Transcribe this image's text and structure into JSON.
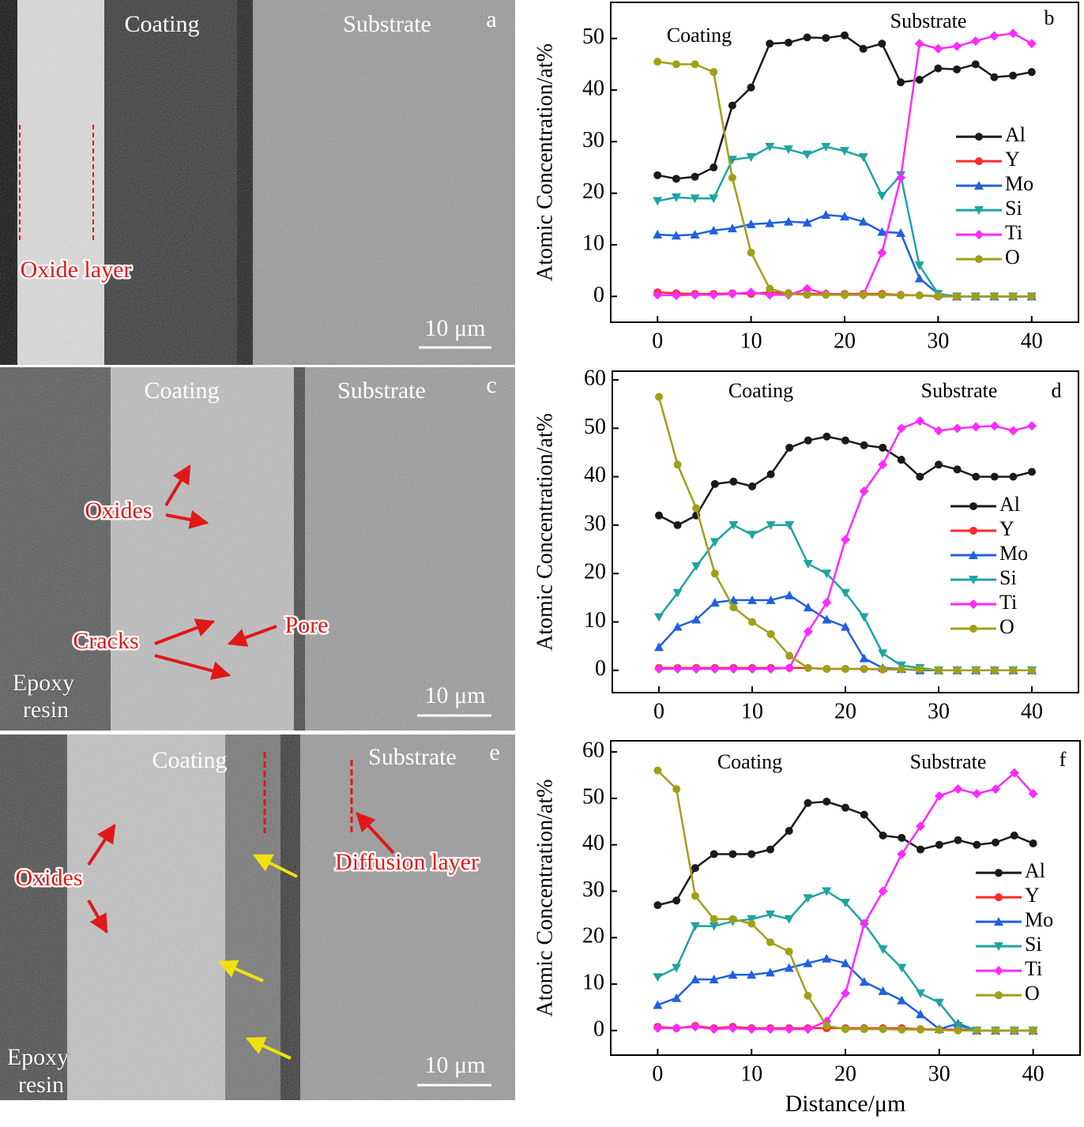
{
  "panels": [
    {
      "texts": [
        "Coating",
        "Substrate",
        "a",
        "Oxide layer",
        "10 μm"
      ]
    },
    {
      "texts": [
        "Coating",
        "Substrate",
        "c",
        "Oxides",
        "Cracks",
        "Pore",
        "Epoxy",
        "resin",
        "10 μm"
      ]
    },
    {
      "texts": [
        "Coating",
        "Substrate",
        "e",
        "Oxides",
        "Diffusion layer",
        "Epoxy",
        "resin",
        "10 μm"
      ]
    }
  ],
  "chart_data": [
    {
      "type": "line",
      "annotations": [
        "Coating",
        "Substrate",
        "b"
      ],
      "ylabel": "Atomic Concentration/at%",
      "x": [
        0,
        2,
        4,
        6,
        8,
        10,
        12,
        14,
        16,
        18,
        20,
        22,
        24,
        26,
        28,
        30,
        32,
        34,
        36,
        38,
        40
      ],
      "xlim": [
        -5,
        45
      ],
      "ylim": [
        -5,
        57
      ],
      "xticks": [
        0,
        10,
        20,
        30,
        40
      ],
      "yticks": [
        0,
        10,
        20,
        30,
        40,
        50
      ],
      "legend": "right",
      "series": [
        {
          "name": "Al",
          "color": "#1a1a1a",
          "marker": "circle",
          "values": [
            23.5,
            22.8,
            23.2,
            25,
            37,
            40.5,
            49,
            49.2,
            50.2,
            50.1,
            50.6,
            48,
            49,
            41.5,
            42,
            44.2,
            44,
            45,
            42.5,
            42.8,
            43.5
          ]
        },
        {
          "name": "Y",
          "color": "#ff2a2a",
          "marker": "circle",
          "values": [
            0.8,
            0.6,
            0.5,
            0.5,
            0.6,
            0.5,
            0.8,
            0.6,
            0.5,
            0.5,
            0.5,
            0.5,
            0.5,
            0.3,
            0.2,
            0,
            0,
            0,
            0,
            0,
            0
          ]
        },
        {
          "name": "Mo",
          "color": "#2060e0",
          "marker": "triangle",
          "values": [
            12,
            11.8,
            12,
            12.8,
            13.2,
            14,
            14.2,
            14.5,
            14.3,
            15.8,
            15.5,
            14.5,
            12.5,
            12.3,
            3.5,
            0.5,
            0,
            0,
            0,
            0,
            0
          ]
        },
        {
          "name": "Si",
          "color": "#1fa3a3",
          "marker": "triangle-down",
          "values": [
            18.5,
            19.2,
            19,
            19,
            26.5,
            27,
            29,
            28.5,
            27.5,
            29,
            28.2,
            27,
            19.5,
            23.5,
            6,
            0.5,
            0,
            0,
            0,
            0,
            0
          ]
        },
        {
          "name": "Ti",
          "color": "#ff2aff",
          "marker": "diamond",
          "values": [
            0.3,
            0.2,
            0.3,
            0.3,
            0.5,
            0.8,
            0.3,
            0.3,
            1.5,
            0.5,
            0.3,
            0.3,
            8.5,
            23,
            49,
            48,
            48.5,
            49.5,
            50.5,
            51,
            49
          ]
        },
        {
          "name": "O",
          "color": "#a0a018",
          "marker": "circle",
          "values": [
            45.5,
            45,
            45,
            43.5,
            23,
            8.5,
            1.5,
            0.5,
            0.3,
            0.3,
            0.3,
            0.3,
            0.3,
            0.2,
            0.2,
            0.1,
            0,
            0,
            0,
            0,
            0
          ]
        }
      ]
    },
    {
      "type": "line",
      "annotations": [
        "Coating",
        "Substrate",
        "d"
      ],
      "ylabel": "Atomic Concentration/at%",
      "x": [
        0,
        2,
        4,
        6,
        8,
        10,
        12,
        14,
        16,
        18,
        20,
        22,
        24,
        26,
        28,
        30,
        32,
        34,
        36,
        38,
        40
      ],
      "xlim": [
        -5,
        45
      ],
      "ylim": [
        -4.6,
        61.8
      ],
      "xticks": [
        0,
        10,
        20,
        30,
        40
      ],
      "yticks": [
        0,
        10,
        20,
        30,
        40,
        50,
        60
      ],
      "legend": "right",
      "series": [
        {
          "name": "Al",
          "color": "#1a1a1a",
          "marker": "circle",
          "values": [
            32,
            30,
            32,
            38.5,
            39,
            38,
            40.5,
            46,
            47.5,
            48.3,
            47.5,
            46.5,
            46,
            43.5,
            40,
            42.5,
            41.5,
            40,
            40,
            40,
            41
          ]
        },
        {
          "name": "Y",
          "color": "#ff2a2a",
          "marker": "circle",
          "values": [
            0.5,
            0.5,
            0.5,
            0.5,
            0.5,
            0.5,
            0.5,
            0.5,
            0.5,
            0.3,
            0.3,
            0.3,
            0.2,
            0.2,
            0.1,
            0,
            0,
            0,
            0,
            0,
            0
          ]
        },
        {
          "name": "Mo",
          "color": "#2060e0",
          "marker": "triangle",
          "values": [
            4.8,
            9,
            10.5,
            14,
            14.5,
            14.5,
            14.5,
            15.5,
            13,
            10.5,
            9,
            2.5,
            0.5,
            0.3,
            0,
            0,
            0,
            0,
            0,
            0,
            0
          ]
        },
        {
          "name": "Si",
          "color": "#1fa3a3",
          "marker": "triangle-down",
          "values": [
            11,
            16,
            21.5,
            26.5,
            30,
            28,
            30,
            30,
            22,
            20,
            16,
            11,
            3.5,
            1,
            0.5,
            0,
            0,
            0,
            0,
            0,
            0
          ]
        },
        {
          "name": "Ti",
          "color": "#ff2aff",
          "marker": "diamond",
          "values": [
            0.3,
            0.3,
            0.3,
            0.3,
            0.3,
            0.3,
            0.3,
            0.5,
            8,
            14,
            27,
            37,
            42.5,
            50,
            51.5,
            49.5,
            50,
            50.3,
            50.5,
            49.5,
            50.5
          ]
        },
        {
          "name": "O",
          "color": "#a0a018",
          "marker": "circle",
          "values": [
            56.5,
            42.5,
            33.5,
            20,
            13,
            10,
            7.5,
            3,
            0.5,
            0.3,
            0.3,
            0.3,
            0.3,
            0.2,
            0.2,
            0,
            0,
            0,
            0,
            0,
            0
          ]
        }
      ]
    },
    {
      "type": "line",
      "annotations": [
        "Coating",
        "Substrate",
        "f"
      ],
      "ylabel": "Atomic Concentration/at%",
      "xlabel": "Distance/μm",
      "x": [
        0,
        2,
        4,
        6,
        8,
        10,
        12,
        14,
        16,
        18,
        20,
        22,
        24,
        26,
        28,
        30,
        32,
        34,
        36,
        38,
        40
      ],
      "xlim": [
        -5,
        45
      ],
      "ylim": [
        -5.3,
        62.4
      ],
      "xticks": [
        0,
        10,
        20,
        30,
        40
      ],
      "yticks": [
        0,
        10,
        20,
        30,
        40,
        50,
        60
      ],
      "legend": "right",
      "series": [
        {
          "name": "Al",
          "color": "#1a1a1a",
          "marker": "circle",
          "values": [
            27,
            28,
            35,
            38,
            38,
            38,
            39,
            43,
            49,
            49.3,
            48,
            46.5,
            42,
            41.5,
            39,
            40,
            41,
            40,
            40.5,
            42,
            40.3
          ]
        },
        {
          "name": "Y",
          "color": "#ff2a2a",
          "marker": "circle",
          "values": [
            0.8,
            0.5,
            1,
            0.5,
            0.8,
            0.5,
            0.5,
            0.5,
            0.5,
            0.5,
            0.5,
            0.5,
            0.5,
            0.5,
            0.3,
            0.2,
            0.2,
            0,
            0,
            0,
            0
          ]
        },
        {
          "name": "Mo",
          "color": "#2060e0",
          "marker": "triangle",
          "values": [
            5.5,
            7,
            11,
            11,
            12,
            12,
            12.5,
            13.5,
            14.5,
            15.5,
            14.5,
            10.5,
            8.5,
            6.5,
            3.5,
            0.3,
            1.5,
            0,
            0,
            0,
            0
          ]
        },
        {
          "name": "Si",
          "color": "#1fa3a3",
          "marker": "triangle-down",
          "values": [
            11.5,
            13.5,
            22.5,
            22.5,
            23.5,
            24,
            25,
            24,
            28.5,
            30,
            27.5,
            23,
            17.5,
            13.5,
            8,
            6,
            1,
            0,
            0,
            0,
            0
          ]
        },
        {
          "name": "Ti",
          "color": "#ff2aff",
          "marker": "diamond",
          "values": [
            0.5,
            0.5,
            0.8,
            0.3,
            0.5,
            0.3,
            0.3,
            0.3,
            0.3,
            2,
            8,
            23,
            30,
            38,
            44,
            50.5,
            52,
            51,
            52,
            55.5,
            51
          ]
        },
        {
          "name": "O",
          "color": "#a0a018",
          "marker": "circle",
          "values": [
            56,
            52,
            29,
            24,
            24,
            23,
            19,
            17,
            7.5,
            1,
            0.3,
            0.3,
            0.3,
            0.2,
            0.2,
            0.1,
            0,
            0,
            0,
            0,
            0
          ]
        }
      ]
    }
  ]
}
